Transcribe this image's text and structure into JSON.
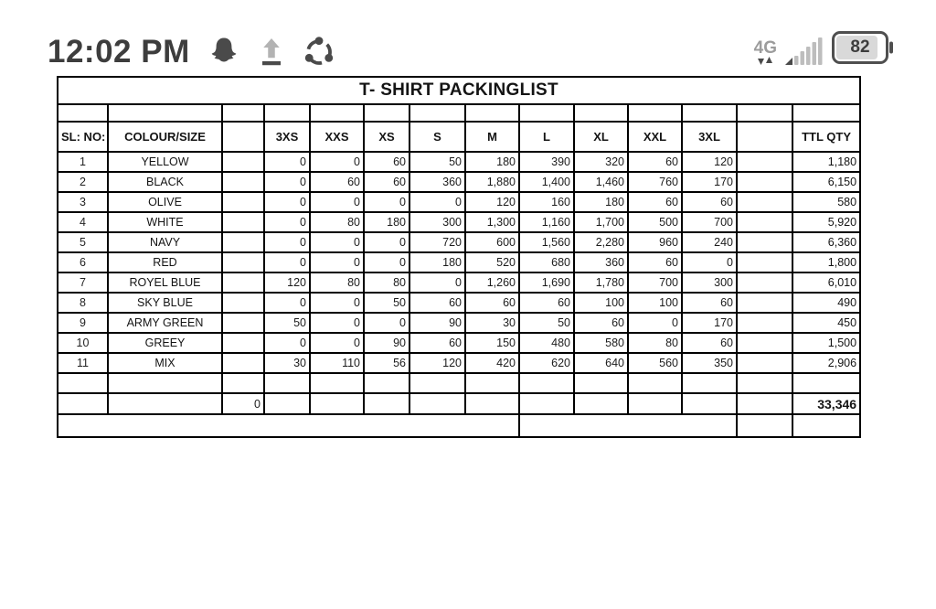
{
  "status_bar": {
    "time": "12:02 PM",
    "network_label": "4G",
    "battery_level": "82",
    "icon_names": [
      "snapchat-ghost-icon",
      "upload-icon",
      "share-icon",
      "data-arrows-icon",
      "signal-bars-icon",
      "battery-icon"
    ],
    "colors": {
      "foreground": "#3d3d3d",
      "icon_dark": "#4a4a4a",
      "muted": "#9c9c9c",
      "bars_light": "#bdbdbd"
    }
  },
  "table": {
    "title": "T- SHIRT PACKINGLIST",
    "columns": [
      "SL: NO:",
      "COLOUR/SIZE",
      "",
      "3XS",
      "XXS",
      "XS",
      "S",
      "M",
      "L",
      "XL",
      "XXL",
      "3XL",
      "",
      "TTL QTY"
    ],
    "rows": [
      {
        "sl": "1",
        "colour": "YELLOW",
        "values": [
          "0",
          "0",
          "60",
          "50",
          "180",
          "390",
          "320",
          "60",
          "120"
        ],
        "ttl": "1,180"
      },
      {
        "sl": "2",
        "colour": "BLACK",
        "values": [
          "0",
          "60",
          "60",
          "360",
          "1,880",
          "1,400",
          "1,460",
          "760",
          "170"
        ],
        "ttl": "6,150"
      },
      {
        "sl": "3",
        "colour": "OLIVE",
        "values": [
          "0",
          "0",
          "0",
          "0",
          "120",
          "160",
          "180",
          "60",
          "60"
        ],
        "ttl": "580"
      },
      {
        "sl": "4",
        "colour": "WHITE",
        "values": [
          "0",
          "80",
          "180",
          "300",
          "1,300",
          "1,160",
          "1,700",
          "500",
          "700"
        ],
        "ttl": "5,920"
      },
      {
        "sl": "5",
        "colour": "NAVY",
        "values": [
          "0",
          "0",
          "0",
          "720",
          "600",
          "1,560",
          "2,280",
          "960",
          "240"
        ],
        "ttl": "6,360"
      },
      {
        "sl": "6",
        "colour": "RED",
        "values": [
          "0",
          "0",
          "0",
          "180",
          "520",
          "680",
          "360",
          "60",
          "0"
        ],
        "ttl": "1,800"
      },
      {
        "sl": "7",
        "colour": "ROYEL BLUE",
        "values": [
          "120",
          "80",
          "80",
          "0",
          "1,260",
          "1,690",
          "1,780",
          "700",
          "300"
        ],
        "ttl": "6,010"
      },
      {
        "sl": "8",
        "colour": "SKY BLUE",
        "values": [
          "0",
          "0",
          "50",
          "60",
          "60",
          "60",
          "100",
          "100",
          "60"
        ],
        "ttl": "490"
      },
      {
        "sl": "9",
        "colour": "ARMY GREEN",
        "values": [
          "50",
          "0",
          "0",
          "90",
          "30",
          "50",
          "60",
          "0",
          "170"
        ],
        "ttl": "450"
      },
      {
        "sl": "10",
        "colour": "GREEY",
        "values": [
          "0",
          "0",
          "90",
          "60",
          "150",
          "480",
          "580",
          "80",
          "60"
        ],
        "ttl": "1,500"
      },
      {
        "sl": "11",
        "colour": "MIX",
        "values": [
          "30",
          "110",
          "56",
          "120",
          "420",
          "620",
          "640",
          "560",
          "350"
        ],
        "ttl": "2,906"
      }
    ],
    "pre_total_zero": "0",
    "grand_total": "33,346"
  }
}
